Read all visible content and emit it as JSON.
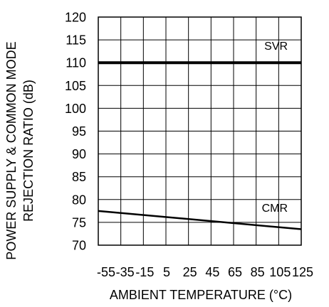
{
  "chart_data": {
    "type": "line",
    "xlabel": "AMBIENT TEMPERATURE (°C)",
    "ylabel_line1": "POWER SUPPLY & COMMON MODE",
    "ylabel_line2": "REJECTION RATIO (dB)",
    "xlim": [
      -55,
      125
    ],
    "ylim": [
      70,
      120
    ],
    "x_ticks": [
      -55,
      -35,
      -15,
      5,
      25,
      45,
      65,
      85,
      105,
      125
    ],
    "x_tick_labels": [
      "-55",
      "-35",
      "-15",
      "5",
      "25",
      "45",
      "65",
      "85",
      "105",
      "125"
    ],
    "y_ticks": [
      70,
      75,
      80,
      85,
      90,
      95,
      100,
      105,
      110,
      115,
      120
    ],
    "y_tick_labels": [
      "70",
      "75",
      "80",
      "85",
      "90",
      "95",
      "100",
      "105",
      "110",
      "115",
      "120"
    ],
    "grid": true,
    "series": [
      {
        "name": "SVR",
        "x": [
          -55,
          125
        ],
        "y": [
          110,
          110
        ],
        "stroke_width": 4,
        "label_at": [
          113,
          112.8
        ]
      },
      {
        "name": "CMR",
        "x": [
          -55,
          125
        ],
        "y": [
          77.5,
          73.5
        ],
        "stroke_width": 2.5,
        "label_at": [
          113,
          77.3
        ]
      }
    ],
    "colors": {
      "line": "#000000",
      "grid": "#000000"
    }
  }
}
